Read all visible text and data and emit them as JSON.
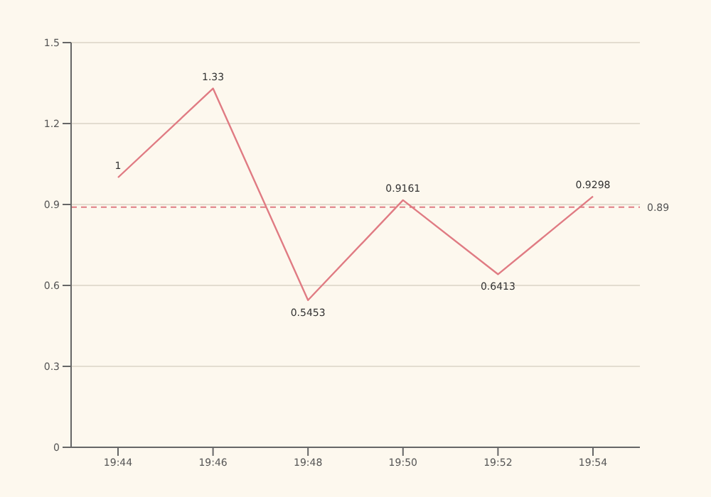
{
  "chart_data": {
    "type": "line",
    "categories": [
      "19:44",
      "19:46",
      "19:48",
      "19:50",
      "19:52",
      "19:54"
    ],
    "series": [
      {
        "color": "#e07b83",
        "values": [
          1,
          1.33,
          0.5453,
          0.9161,
          0.6413,
          0.9298
        ]
      }
    ],
    "ylim": [
      0,
      1.5
    ],
    "yticks": [
      0,
      0.3,
      0.6,
      0.9,
      1.2,
      1.5
    ],
    "grid": "y",
    "data_labels": true,
    "marker": "none",
    "line_style": "solid",
    "ref_lines": [
      {
        "axis": "y",
        "value": 0.89,
        "label": "0.89",
        "color": "#e07b83",
        "line_style": "dashed"
      }
    ]
  }
}
